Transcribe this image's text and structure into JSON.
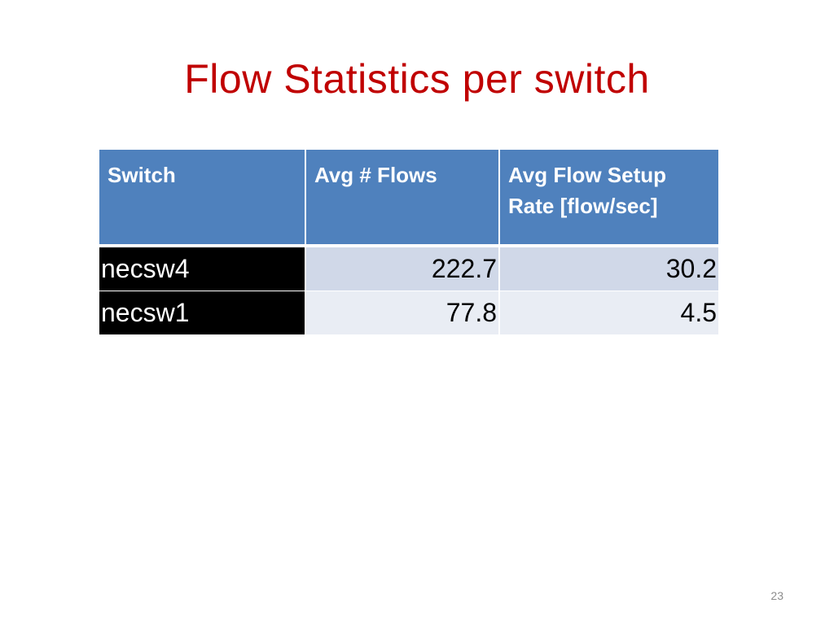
{
  "slide": {
    "title": "Flow Statistics per switch",
    "page_number": "23"
  },
  "table": {
    "headers": [
      "Switch",
      "Avg # Flows",
      "Avg Flow Setup Rate [flow/sec]"
    ],
    "rows": [
      {
        "switch": "necsw4",
        "avg_flows": "222.7",
        "avg_setup_rate": "30.2"
      },
      {
        "switch": "necsw1",
        "avg_flows": "77.8",
        "avg_setup_rate": "4.5"
      }
    ]
  },
  "colors": {
    "title": "#c00000",
    "header_bg": "#4f81bd",
    "header_text": "#ffffff",
    "name_cell_bg": "#000000",
    "row_band_1": "#d0d8e8",
    "row_band_2": "#e9edf4"
  }
}
